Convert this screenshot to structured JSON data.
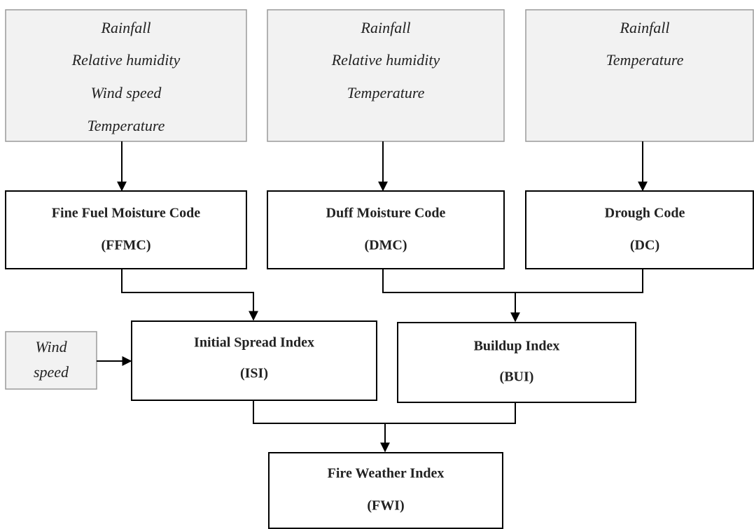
{
  "inputs": [
    {
      "lines": [
        "Rainfall",
        "Relative humidity",
        "Wind speed",
        "Temperature"
      ]
    },
    {
      "lines": [
        "Rainfall",
        "Relative humidity",
        "Temperature"
      ]
    },
    {
      "lines": [
        "Rainfall",
        "Temperature"
      ]
    },
    {
      "lines": [
        "Wind",
        "speed"
      ]
    }
  ],
  "codes": [
    {
      "name": "Fine Fuel Moisture Code",
      "abbr": "(FFMC)"
    },
    {
      "name": "Duff Moisture Code",
      "abbr": "(DMC)"
    },
    {
      "name": "Drough Code",
      "abbr": "(DC)"
    }
  ],
  "indices": [
    {
      "name": "Initial Spread Index",
      "abbr": "(ISI)"
    },
    {
      "name": "Buildup Index",
      "abbr": "(BUI)"
    },
    {
      "name": "Fire Weather Index",
      "abbr": "(FWI)"
    }
  ]
}
